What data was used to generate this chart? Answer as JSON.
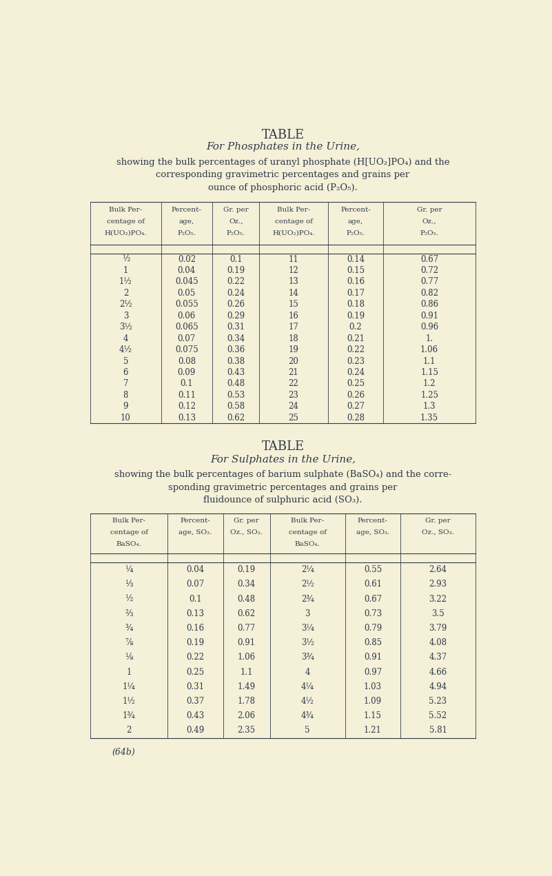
{
  "bg_color": "#f5f0d8",
  "text_color": "#2e3a4a",
  "page_title1": "TABLE",
  "page_title2": "For Phosphates in the Urine,",
  "page_subtitle_lines": [
    "showing the bulk percentages of uranyl phosphate (H[UO₂]PO₄) and the",
    "corresponding gravimetric percentages and grains per",
    "ounce of phosphoric acid (P₂O₅)."
  ],
  "phos_headers": [
    "Bulk Per-\ncentage of\nH(UO₂)PO₄.",
    "Percent-\nage,\nP₂O₅.",
    "Gr. per\nOz.,\nP₂O₅.",
    "Bulk Per-\ncentage of\nH(UO₂)PO₄.",
    "Percent-\nage,\nP₂O₅.",
    "Gr. per\nOz.,\nP₂O₅."
  ],
  "phos_left": [
    [
      "½",
      "0.02",
      "0.1"
    ],
    [
      "1",
      "0.04",
      "0.19"
    ],
    [
      "1½",
      "0.045",
      "0.22"
    ],
    [
      "2",
      "0.05",
      "0.24"
    ],
    [
      "2½",
      "0.055",
      "0.26"
    ],
    [
      "3",
      "0.06",
      "0.29"
    ],
    [
      "3½",
      "0.065",
      "0.31"
    ],
    [
      "4",
      "0.07",
      "0.34"
    ],
    [
      "4½",
      "0.075",
      "0.36"
    ],
    [
      "5",
      "0.08",
      "0.38"
    ],
    [
      "6",
      "0.09",
      "0.43"
    ],
    [
      "7",
      "0.1",
      "0.48"
    ],
    [
      "8",
      "0.11",
      "0.53"
    ],
    [
      "9",
      "0.12",
      "0.58"
    ],
    [
      "10",
      "0.13",
      "0.62"
    ]
  ],
  "phos_right": [
    [
      "11",
      "0.14",
      "0.67"
    ],
    [
      "12",
      "0.15",
      "0.72"
    ],
    [
      "13",
      "0.16",
      "0.77"
    ],
    [
      "14",
      "0.17",
      "0.82"
    ],
    [
      "15",
      "0.18",
      "0.86"
    ],
    [
      "16",
      "0.19",
      "0.91"
    ],
    [
      "17",
      "0.2",
      "0.96"
    ],
    [
      "18",
      "0.21",
      "1."
    ],
    [
      "19",
      "0.22",
      "1.06"
    ],
    [
      "20",
      "0.23",
      "1.1"
    ],
    [
      "21",
      "0.24",
      "1.15"
    ],
    [
      "22",
      "0.25",
      "1.2"
    ],
    [
      "23",
      "0.26",
      "1.25"
    ],
    [
      "24",
      "0.27",
      "1.3"
    ],
    [
      "25",
      "0.28",
      "1.35"
    ]
  ],
  "sulph_title1": "TABLE",
  "sulph_title2": "For Sulphates in the Urine,",
  "sulph_subtitle_lines": [
    "showing the bulk percentages of barium sulphate (BaSO₄) and the corre-",
    "sponding gravimetric percentages and grains per",
    "fluidounce of sulphuric acid (SO₃)."
  ],
  "sulph_headers": [
    "Bulk Per-\ncentage of\nBaSO₄.",
    "Percent-\nage, SO₃.",
    "Gr. per\nOz., SO₃.",
    "Bulk Per-\ncentage of\nBaSO₄.",
    "Percent-\nage, SO₃.",
    "Gr. per\nOz., SO₃."
  ],
  "sulph_left": [
    [
      "¼",
      "0.04",
      "0.19"
    ],
    [
      "⅓",
      "0.07",
      "0.34"
    ],
    [
      "½",
      "0.1",
      "0.48"
    ],
    [
      "⅔",
      "0.13",
      "0.62"
    ],
    [
      "¾",
      "0.16",
      "0.77"
    ],
    [
      "⅞",
      "0.19",
      "0.91"
    ],
    [
      "⅛",
      "0.22",
      "1.06"
    ],
    [
      "1",
      "0.25",
      "1.1"
    ],
    [
      "1¼",
      "0.31",
      "1.49"
    ],
    [
      "1½",
      "0.37",
      "1.78"
    ],
    [
      "1¾",
      "0.43",
      "2.06"
    ],
    [
      "2",
      "0.49",
      "2.35"
    ]
  ],
  "sulph_right": [
    [
      "2¼",
      "0.55",
      "2.64"
    ],
    [
      "2½",
      "0.61",
      "2.93"
    ],
    [
      "2¾",
      "0.67",
      "3.22"
    ],
    [
      "3",
      "0.73",
      "3.5"
    ],
    [
      "3¼",
      "0.79",
      "3.79"
    ],
    [
      "3½",
      "0.85",
      "4.08"
    ],
    [
      "3¾",
      "0.91",
      "4.37"
    ],
    [
      "4",
      "0.97",
      "4.66"
    ],
    [
      "4¼",
      "1.03",
      "4.94"
    ],
    [
      "4½",
      "1.09",
      "5.23"
    ],
    [
      "4¾",
      "1.15",
      "5.52"
    ],
    [
      "5",
      "1.21",
      "5.81"
    ]
  ],
  "footer": "(64b)"
}
